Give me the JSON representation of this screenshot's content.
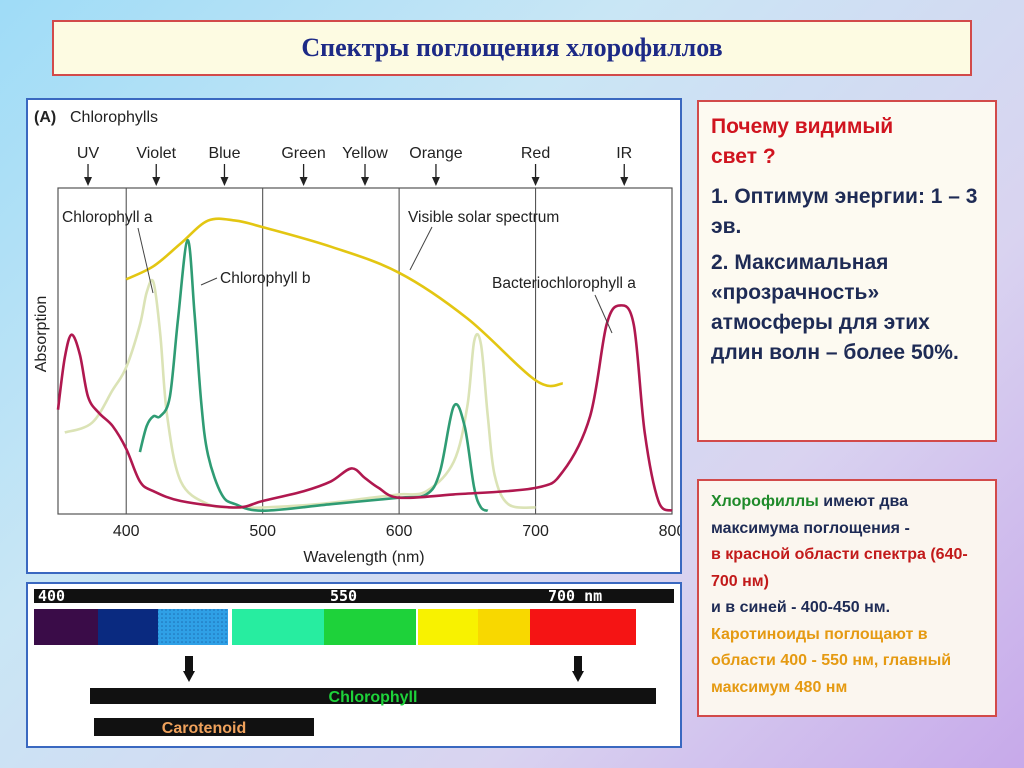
{
  "title": "Спектры поглощения хлорофиллов",
  "why": {
    "question": "Почему видимый свет ?",
    "point1": "1. Оптимум энергии: 1 – 3 эв.",
    "point2": "2. Максимальная «прозрачность» атмосферы для этих длин волн – более 50%."
  },
  "chlorophyll_note": {
    "l1_a": "Хлорофиллы",
    "l1_b": " имеют два максимума поглощения -",
    "l2": "в красной области спектра (640-700 нм)",
    "l3": "и в синей - 400-450 нм.",
    "l4": "Каротиноиды поглощают в области 400 - 550 нм, главный максимум 480 нм"
  },
  "spectrum_bar": {
    "tick_labels": [
      "400",
      "550",
      "700 nm"
    ],
    "chlorophyll_label": "Chlorophyll",
    "carotenoid_label": "Carotenoid",
    "bands": [
      {
        "color": "#3a0c48"
      },
      {
        "color": "#0a2a80"
      },
      {
        "color": "#2fa0e6"
      },
      {
        "color": "#27eda0"
      },
      {
        "color": "#1ed23a"
      },
      {
        "color": "#f8f200"
      },
      {
        "color": "#f8d800"
      },
      {
        "color": "#f51414"
      }
    ]
  },
  "chart_data": {
    "type": "line",
    "panel_label": "(A)",
    "title": "Chlorophylls",
    "xlabel": "Wavelength (nm)",
    "ylabel": "Absorption",
    "xlim": [
      350,
      800
    ],
    "ylim": [
      0,
      1
    ],
    "xticks": [
      400,
      500,
      600,
      700,
      800
    ],
    "regions": [
      {
        "label": "UV",
        "x": 372
      },
      {
        "label": "Violet",
        "x": 422
      },
      {
        "label": "Blue",
        "x": 472
      },
      {
        "label": "Green",
        "x": 530
      },
      {
        "label": "Yellow",
        "x": 575
      },
      {
        "label": "Orange",
        "x": 627
      },
      {
        "label": "Red",
        "x": 700
      },
      {
        "label": "IR",
        "x": 765
      }
    ],
    "boundaries": [
      400,
      500,
      600,
      700
    ],
    "series": [
      {
        "name": "Visible solar spectrum",
        "color": "#e3c612",
        "x": [
          400,
          420,
          440,
          460,
          480,
          500,
          550,
          600,
          650,
          700,
          720
        ],
        "y": [
          0.72,
          0.76,
          0.83,
          0.9,
          0.9,
          0.88,
          0.82,
          0.74,
          0.6,
          0.41,
          0.4
        ]
      },
      {
        "name": "Chlorophyll a",
        "color": "#dbe3b6",
        "x": [
          355,
          375,
          390,
          400,
          410,
          415,
          420,
          425,
          430,
          440,
          460,
          480,
          500,
          540,
          580,
          600,
          620,
          640,
          650,
          655,
          660,
          665,
          670,
          680,
          700
        ],
        "y": [
          0.25,
          0.28,
          0.38,
          0.45,
          0.58,
          0.68,
          0.71,
          0.55,
          0.3,
          0.1,
          0.03,
          0.02,
          0.02,
          0.03,
          0.05,
          0.06,
          0.07,
          0.16,
          0.33,
          0.53,
          0.52,
          0.3,
          0.12,
          0.03,
          0.02
        ]
      },
      {
        "name": "Chlorophyll b",
        "color": "#2f9c74",
        "x": [
          410,
          415,
          420,
          425,
          432,
          438,
          445,
          450,
          455,
          460,
          470,
          480,
          500,
          550,
          600,
          620,
          630,
          640,
          648,
          655,
          660,
          665
        ],
        "y": [
          0.19,
          0.27,
          0.3,
          0.3,
          0.36,
          0.6,
          0.84,
          0.62,
          0.34,
          0.18,
          0.06,
          0.03,
          0.01,
          0.03,
          0.05,
          0.06,
          0.13,
          0.33,
          0.27,
          0.08,
          0.02,
          0.01
        ]
      },
      {
        "name": "Bacteriochlorophyll a",
        "color": "#b0184f",
        "x": [
          350,
          355,
          360,
          366,
          372,
          380,
          390,
          400,
          410,
          420,
          440,
          480,
          500,
          530,
          550,
          565,
          575,
          585,
          600,
          640,
          700,
          720,
          740,
          752,
          762,
          772,
          780,
          790,
          800
        ],
        "y": [
          0.32,
          0.48,
          0.55,
          0.49,
          0.36,
          0.31,
          0.27,
          0.2,
          0.1,
          0.07,
          0.04,
          0.02,
          0.04,
          0.07,
          0.1,
          0.14,
          0.11,
          0.08,
          0.05,
          0.06,
          0.08,
          0.13,
          0.3,
          0.58,
          0.64,
          0.58,
          0.25,
          0.04,
          0.01
        ]
      }
    ],
    "annotations": [
      {
        "label": "Chlorophyll a"
      },
      {
        "label": "Chlorophyll b"
      },
      {
        "label": "Visible solar spectrum"
      },
      {
        "label": "Bacteriochlorophyll a"
      }
    ]
  }
}
